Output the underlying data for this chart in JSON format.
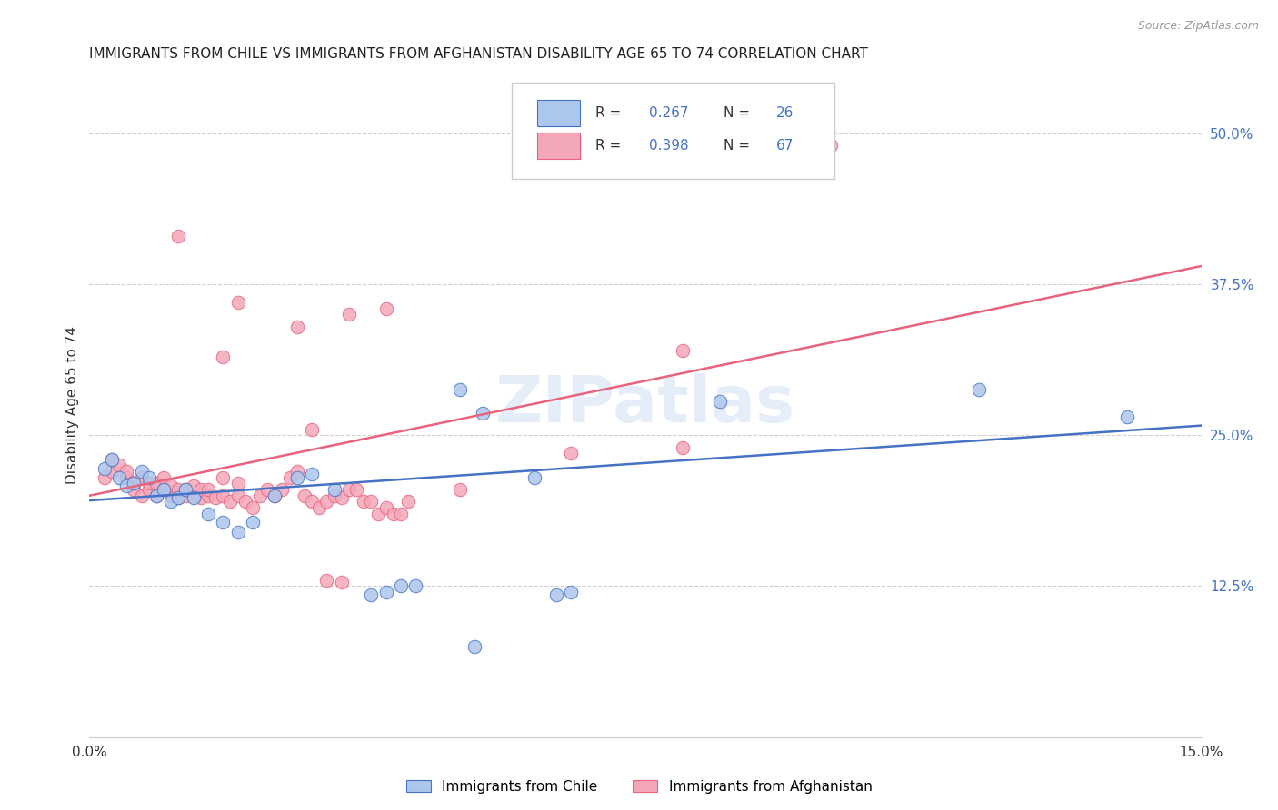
{
  "title": "IMMIGRANTS FROM CHILE VS IMMIGRANTS FROM AFGHANISTAN DISABILITY AGE 65 TO 74 CORRELATION CHART",
  "source": "Source: ZipAtlas.com",
  "ylabel": "Disability Age 65 to 74",
  "xlim": [
    0.0,
    0.15
  ],
  "ylim": [
    0.0,
    0.55
  ],
  "x_ticks": [
    0.0,
    0.03,
    0.06,
    0.09,
    0.12,
    0.15
  ],
  "y_ticks_right": [
    0.0,
    0.125,
    0.25,
    0.375,
    0.5
  ],
  "y_tick_labels_right": [
    "",
    "12.5%",
    "25.0%",
    "37.5%",
    "50.0%"
  ],
  "bottom_legend": [
    "Immigrants from Chile",
    "Immigrants from Afghanistan"
  ],
  "chile_color": "#adc6ed",
  "afghanistan_color": "#f4a7b9",
  "chile_line_color": "#4472c4",
  "afghanistan_line_color": "#e8637d",
  "watermark": "ZIPatlas",
  "chile_line": [
    0.0,
    0.196,
    0.15,
    0.258
  ],
  "afghanistan_line": [
    0.0,
    0.2,
    0.15,
    0.39
  ],
  "chile_points": [
    [
      0.002,
      0.222
    ],
    [
      0.003,
      0.23
    ],
    [
      0.004,
      0.215
    ],
    [
      0.005,
      0.208
    ],
    [
      0.006,
      0.21
    ],
    [
      0.007,
      0.22
    ],
    [
      0.008,
      0.215
    ],
    [
      0.009,
      0.2
    ],
    [
      0.01,
      0.205
    ],
    [
      0.011,
      0.195
    ],
    [
      0.012,
      0.198
    ],
    [
      0.013,
      0.205
    ],
    [
      0.014,
      0.198
    ],
    [
      0.016,
      0.185
    ],
    [
      0.018,
      0.178
    ],
    [
      0.02,
      0.17
    ],
    [
      0.022,
      0.178
    ],
    [
      0.025,
      0.2
    ],
    [
      0.028,
      0.215
    ],
    [
      0.03,
      0.218
    ],
    [
      0.033,
      0.205
    ],
    [
      0.038,
      0.118
    ],
    [
      0.04,
      0.12
    ],
    [
      0.05,
      0.288
    ],
    [
      0.053,
      0.268
    ],
    [
      0.06,
      0.215
    ],
    [
      0.063,
      0.118
    ],
    [
      0.065,
      0.12
    ],
    [
      0.085,
      0.278
    ],
    [
      0.12,
      0.288
    ],
    [
      0.14,
      0.265
    ],
    [
      0.042,
      0.125
    ],
    [
      0.044,
      0.125
    ],
    [
      0.052,
      0.075
    ]
  ],
  "afghanistan_points": [
    [
      0.002,
      0.215
    ],
    [
      0.003,
      0.22
    ],
    [
      0.003,
      0.23
    ],
    [
      0.004,
      0.225
    ],
    [
      0.005,
      0.215
    ],
    [
      0.005,
      0.22
    ],
    [
      0.006,
      0.205
    ],
    [
      0.006,
      0.21
    ],
    [
      0.007,
      0.2
    ],
    [
      0.007,
      0.215
    ],
    [
      0.008,
      0.205
    ],
    [
      0.008,
      0.21
    ],
    [
      0.009,
      0.2
    ],
    [
      0.009,
      0.21
    ],
    [
      0.01,
      0.205
    ],
    [
      0.01,
      0.215
    ],
    [
      0.011,
      0.2
    ],
    [
      0.011,
      0.208
    ],
    [
      0.012,
      0.198
    ],
    [
      0.012,
      0.205
    ],
    [
      0.013,
      0.2
    ],
    [
      0.013,
      0.205
    ],
    [
      0.014,
      0.2
    ],
    [
      0.014,
      0.208
    ],
    [
      0.015,
      0.198
    ],
    [
      0.015,
      0.205
    ],
    [
      0.016,
      0.2
    ],
    [
      0.016,
      0.205
    ],
    [
      0.017,
      0.198
    ],
    [
      0.018,
      0.2
    ],
    [
      0.018,
      0.215
    ],
    [
      0.019,
      0.195
    ],
    [
      0.02,
      0.2
    ],
    [
      0.02,
      0.21
    ],
    [
      0.021,
      0.195
    ],
    [
      0.022,
      0.19
    ],
    [
      0.023,
      0.2
    ],
    [
      0.024,
      0.205
    ],
    [
      0.025,
      0.2
    ],
    [
      0.026,
      0.205
    ],
    [
      0.027,
      0.215
    ],
    [
      0.028,
      0.22
    ],
    [
      0.029,
      0.2
    ],
    [
      0.03,
      0.195
    ],
    [
      0.031,
      0.19
    ],
    [
      0.032,
      0.195
    ],
    [
      0.033,
      0.2
    ],
    [
      0.034,
      0.198
    ],
    [
      0.035,
      0.205
    ],
    [
      0.036,
      0.205
    ],
    [
      0.037,
      0.195
    ],
    [
      0.038,
      0.195
    ],
    [
      0.039,
      0.185
    ],
    [
      0.04,
      0.19
    ],
    [
      0.041,
      0.185
    ],
    [
      0.042,
      0.185
    ],
    [
      0.043,
      0.195
    ],
    [
      0.018,
      0.315
    ],
    [
      0.03,
      0.255
    ],
    [
      0.035,
      0.35
    ],
    [
      0.04,
      0.355
    ],
    [
      0.028,
      0.34
    ],
    [
      0.05,
      0.205
    ],
    [
      0.065,
      0.235
    ],
    [
      0.08,
      0.24
    ],
    [
      0.032,
      0.13
    ],
    [
      0.034,
      0.128
    ],
    [
      0.012,
      0.415
    ],
    [
      0.02,
      0.36
    ],
    [
      0.1,
      0.49
    ],
    [
      0.08,
      0.32
    ]
  ]
}
